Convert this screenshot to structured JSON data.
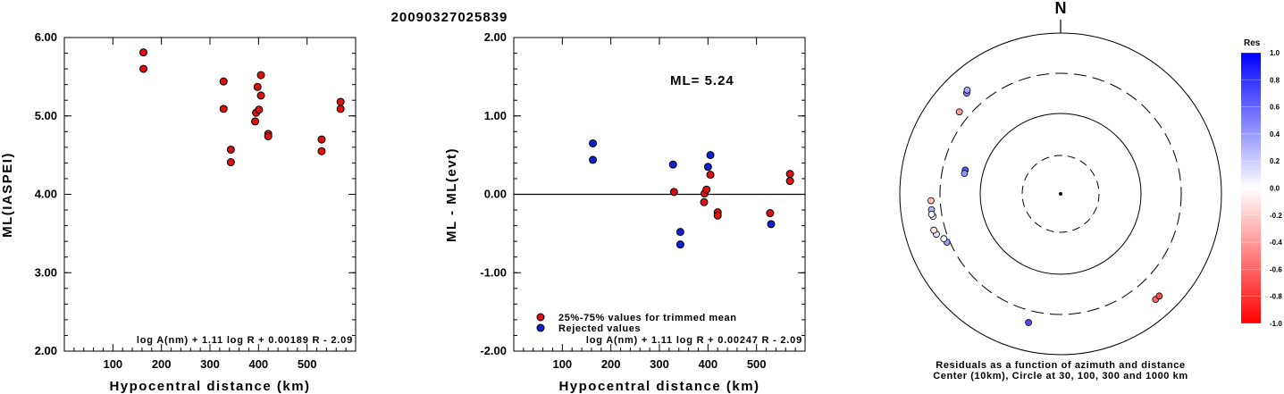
{
  "title": "20090327025839",
  "colors": {
    "accepted": "#dd1111",
    "rejected": "#1020cc",
    "pos_res": "#0018ee",
    "neg_res": "#ff1010"
  },
  "chart_data": [
    {
      "type": "scatter",
      "xlabel": "Hypocentral distance (km)",
      "ylabel": "ML(IASPEI)",
      "xlim": [
        0,
        600
      ],
      "ylim": [
        2.0,
        6.0
      ],
      "xticks": [
        "100",
        "200",
        "300",
        "400",
        "500"
      ],
      "yticks": [
        "2.00",
        "3.00",
        "4.00",
        "5.00",
        "6.00"
      ],
      "annotation": "log A(nm) + 1.11 log R + 0.00189 R - 2.09",
      "series": [
        {
          "points": [
            [
              163,
              5.81
            ],
            [
              163,
              5.6
            ],
            [
              328,
              5.44
            ],
            [
              328,
              5.09
            ],
            [
              343,
              4.57
            ],
            [
              343,
              4.41
            ],
            [
              393,
              4.93
            ],
            [
              395,
              5.04
            ],
            [
              398,
              5.37
            ],
            [
              401,
              5.08
            ],
            [
              405,
              5.52
            ],
            [
              405,
              5.26
            ],
            [
              420,
              4.77
            ],
            [
              420,
              4.74
            ],
            [
              530,
              4.7
            ],
            [
              530,
              4.55
            ],
            [
              569,
              5.18
            ],
            [
              569,
              5.09
            ]
          ]
        }
      ]
    },
    {
      "type": "scatter",
      "xlabel": "Hypocentral distance (km)",
      "ylabel": "ML - ML(evt)",
      "xlim": [
        0,
        600
      ],
      "ylim": [
        -2.0,
        2.0
      ],
      "xticks": [
        "100",
        "200",
        "300",
        "400",
        "500"
      ],
      "yticks": [
        "-2.00",
        "-1.00",
        "0.00",
        "1.00",
        "2.00"
      ],
      "ml_label": "ML= 5.24",
      "annotation": "log A(nm) + 1.11 log R + 0.00247 R - 2.09",
      "legend": [
        "25%-75% values for trimmed mean",
        "Rejected values"
      ],
      "series": [
        {
          "name": "25%-75% values for trimmed mean",
          "points": [
            [
              330,
              0.03
            ],
            [
              392,
              -0.1
            ],
            [
              393,
              0.01
            ],
            [
              397,
              0.06
            ],
            [
              405,
              0.25
            ],
            [
              420,
              -0.23
            ],
            [
              420,
              -0.27
            ],
            [
              528,
              -0.24
            ],
            [
              569,
              0.26
            ],
            [
              569,
              0.17
            ]
          ]
        },
        {
          "name": "Rejected values",
          "points": [
            [
              163,
              0.65
            ],
            [
              163,
              0.44
            ],
            [
              328,
              0.38
            ],
            [
              343,
              -0.48
            ],
            [
              343,
              -0.64
            ],
            [
              400,
              0.35
            ],
            [
              405,
              0.5
            ],
            [
              530,
              -0.38
            ]
          ]
        }
      ]
    },
    {
      "type": "scatter",
      "subtype": "polar-residuals",
      "north_label": "N",
      "caption_line1": "Residuals as a function of azimuth and distance",
      "caption_line2": "Center (10km), Circle at 30, 100, 300 and 1000 km",
      "colorbar_title": "Res",
      "colorbar_ticks": [
        "1.0",
        "0.8",
        "0.6",
        "0.4",
        "0.2",
        "0.0",
        "-0.2",
        "-0.4",
        "-0.6",
        "-0.8",
        "-1.0"
      ],
      "points": [
        {
          "az": 284,
          "dist": 163,
          "res": 0.65
        },
        {
          "az": 282,
          "dist": 163,
          "res": 0.44
        },
        {
          "az": 247,
          "dist": 328,
          "res": 0.38
        },
        {
          "az": 249,
          "dist": 343,
          "res": 0.03
        },
        {
          "az": 252,
          "dist": 405,
          "res": 0.1
        },
        {
          "az": 254,
          "dist": 420,
          "res": -0.1
        },
        {
          "az": 267,
          "dist": 395,
          "res": -0.27
        },
        {
          "az": 263,
          "dist": 398,
          "res": 0.3
        },
        {
          "az": 260,
          "dist": 392,
          "res": -0.05
        },
        {
          "az": 261,
          "dist": 405,
          "res": 0.05
        },
        {
          "az": 309,
          "dist": 401,
          "res": -0.4
        },
        {
          "az": 317,
          "dist": 500,
          "res": 0.5
        },
        {
          "az": 318,
          "dist": 530,
          "res": 0.35
        },
        {
          "az": 194,
          "dist": 430,
          "res": 0.7
        },
        {
          "az": 138,
          "dist": 569,
          "res": -0.6
        },
        {
          "az": 136,
          "dist": 569,
          "res": -0.7
        }
      ]
    }
  ]
}
